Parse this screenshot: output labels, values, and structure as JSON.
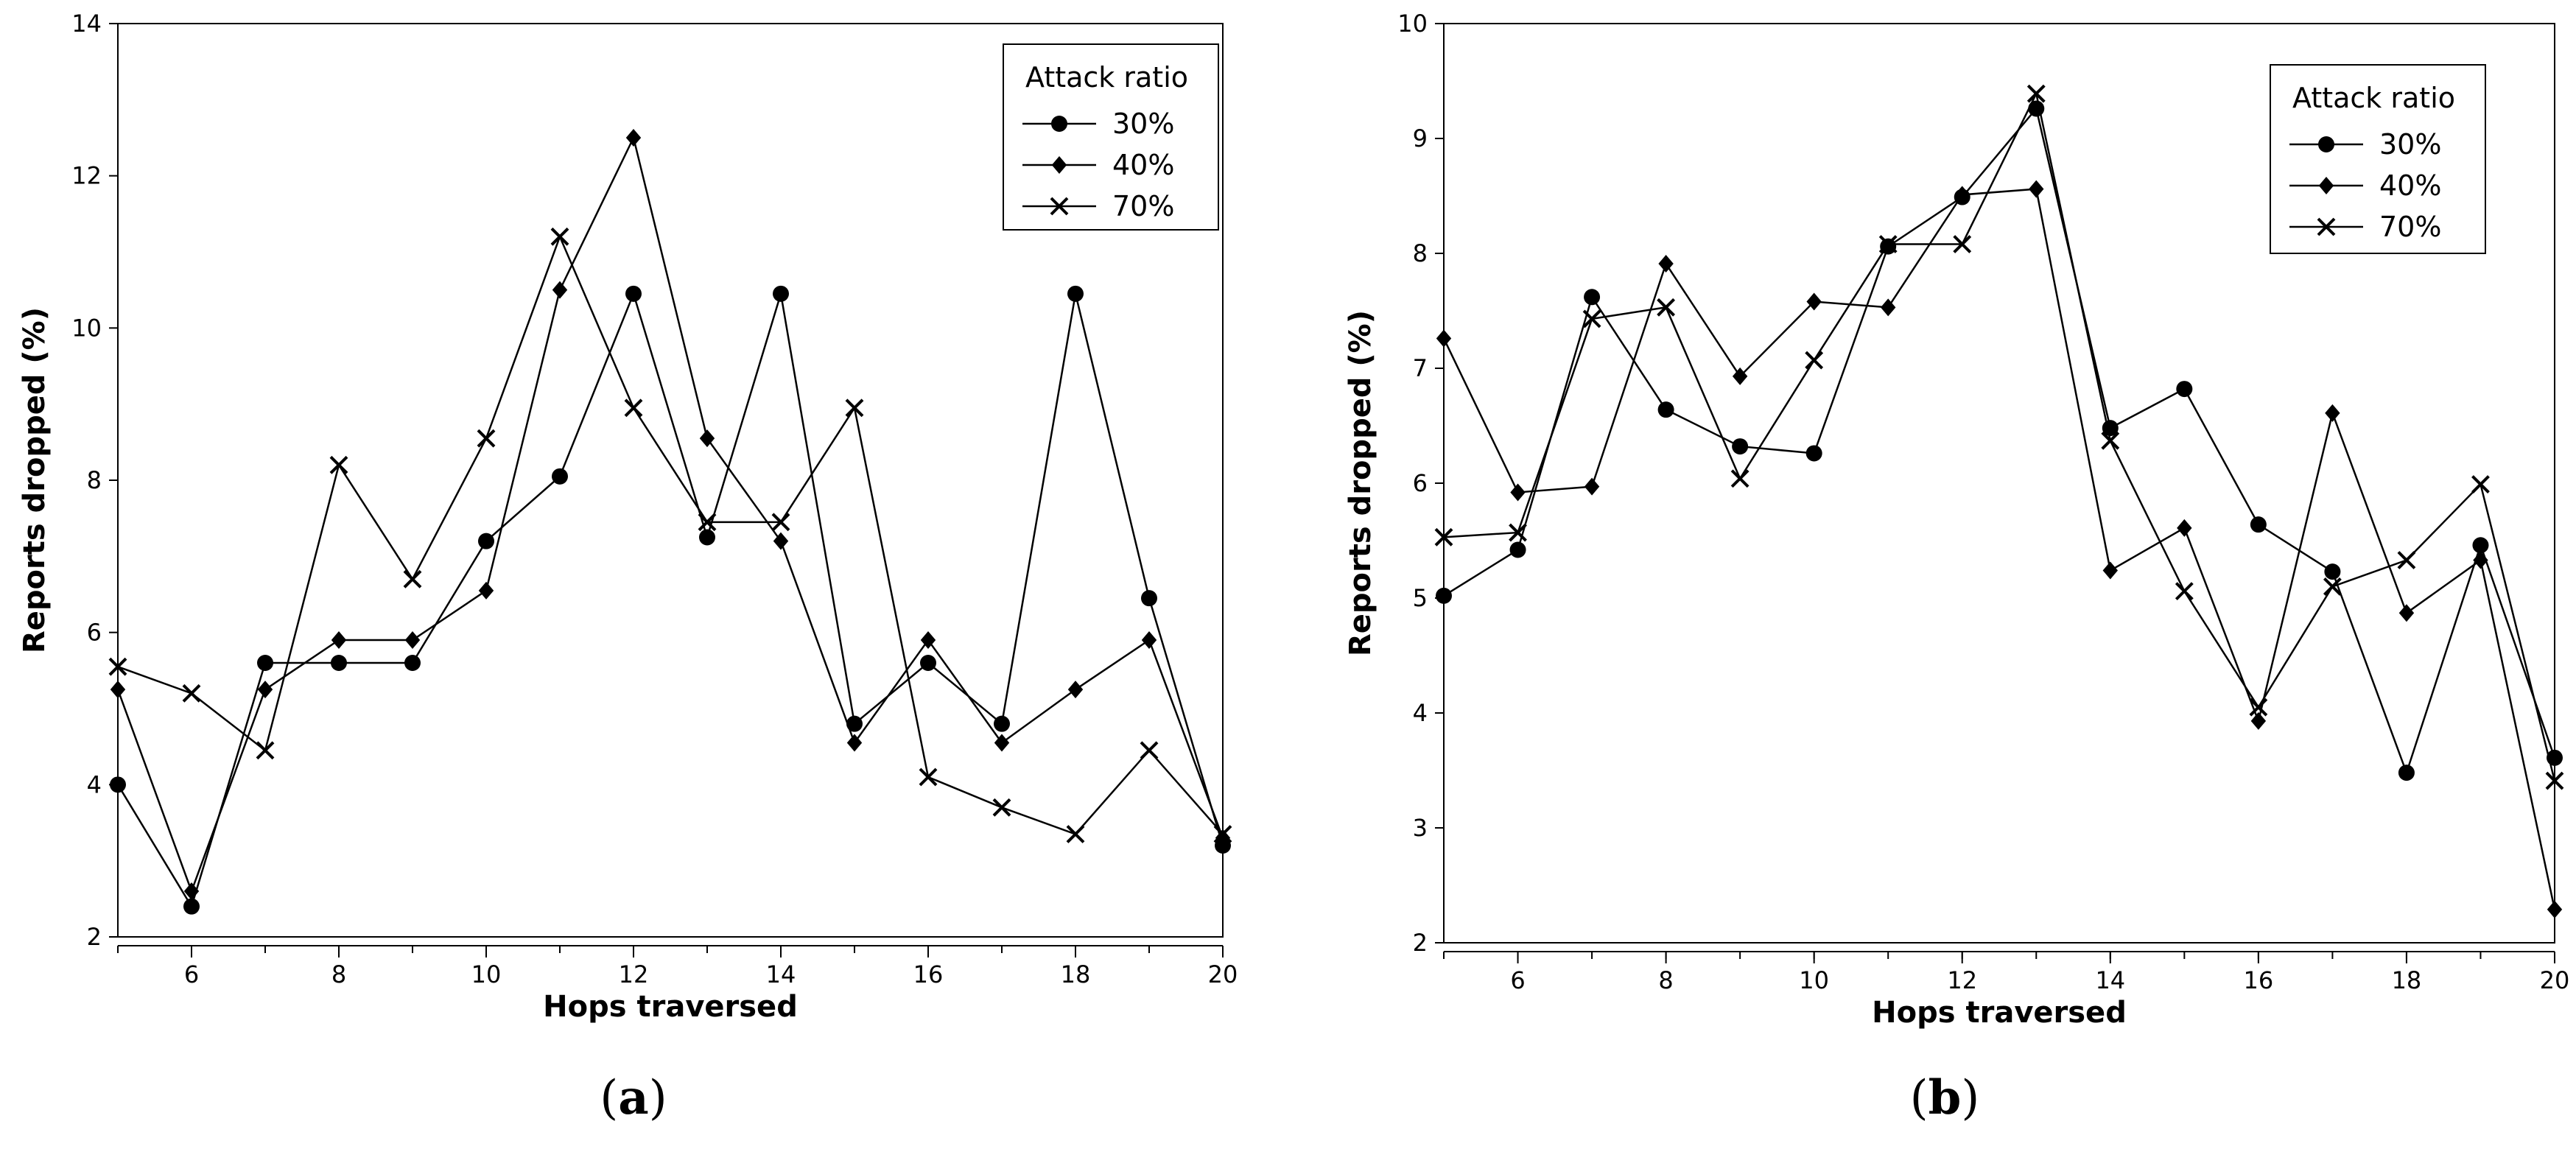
{
  "chart_data": [
    {
      "type": "line",
      "panel_label": "a",
      "xlabel": "Hops traversed",
      "ylabel": "Reports dropped (%)",
      "xlim": [
        5,
        20
      ],
      "ylim": [
        2,
        14
      ],
      "xticks": [
        6,
        8,
        10,
        12,
        14,
        16,
        18,
        20
      ],
      "yticks": [
        2,
        4,
        6,
        8,
        10,
        12,
        14
      ],
      "grid": false,
      "legend": {
        "title": "Attack ratio",
        "position": "top-right"
      },
      "x": [
        5,
        6,
        7,
        8,
        9,
        10,
        11,
        12,
        13,
        14,
        15,
        16,
        17,
        18,
        19,
        20
      ],
      "series": [
        {
          "name": "30%",
          "marker": "circle",
          "values": [
            4.0,
            2.4,
            5.6,
            5.6,
            5.6,
            7.2,
            8.05,
            10.45,
            7.25,
            10.45,
            4.8,
            5.6,
            4.8,
            10.45,
            6.45,
            3.2
          ]
        },
        {
          "name": "40%",
          "marker": "diamond",
          "values": [
            5.25,
            2.6,
            5.25,
            5.9,
            5.9,
            6.55,
            10.5,
            12.5,
            8.55,
            7.2,
            4.55,
            5.9,
            4.55,
            5.25,
            5.9,
            3.3
          ]
        },
        {
          "name": "70%",
          "marker": "x",
          "values": [
            5.55,
            5.2,
            4.45,
            8.2,
            6.7,
            8.55,
            11.2,
            8.95,
            7.45,
            7.45,
            8.95,
            4.1,
            3.7,
            3.35,
            4.45,
            3.35
          ]
        }
      ]
    },
    {
      "type": "line",
      "panel_label": "b",
      "xlabel": "Hops traversed",
      "ylabel": "Reports dropped (%)",
      "xlim": [
        5,
        20
      ],
      "ylim": [
        2,
        10
      ],
      "xticks": [
        6,
        8,
        10,
        12,
        14,
        16,
        18,
        20
      ],
      "yticks": [
        2,
        3,
        4,
        5,
        6,
        7,
        8,
        9,
        10
      ],
      "grid": false,
      "legend": {
        "title": "Attack ratio",
        "position": "top-right"
      },
      "x": [
        5,
        6,
        7,
        8,
        9,
        10,
        11,
        12,
        13,
        14,
        15,
        16,
        17,
        18,
        19,
        20
      ],
      "series": [
        {
          "name": "30%",
          "marker": "circle",
          "values": [
            5.02,
            5.42,
            7.62,
            6.64,
            6.32,
            6.26,
            8.06,
            8.49,
            9.26,
            6.48,
            6.82,
            5.64,
            5.23,
            3.48,
            5.46,
            3.61
          ]
        },
        {
          "name": "40%",
          "marker": "diamond",
          "values": [
            7.26,
            5.92,
            5.97,
            7.91,
            6.93,
            7.58,
            7.53,
            8.51,
            8.56,
            5.24,
            5.61,
            3.93,
            6.61,
            4.87,
            5.33,
            2.29
          ]
        },
        {
          "name": "70%",
          "marker": "x",
          "values": [
            5.53,
            5.57,
            7.43,
            7.53,
            6.04,
            7.07,
            8.08,
            8.08,
            9.39,
            6.37,
            5.06,
            4.05,
            5.1,
            5.33,
            5.99,
            3.41
          ]
        }
      ]
    }
  ]
}
